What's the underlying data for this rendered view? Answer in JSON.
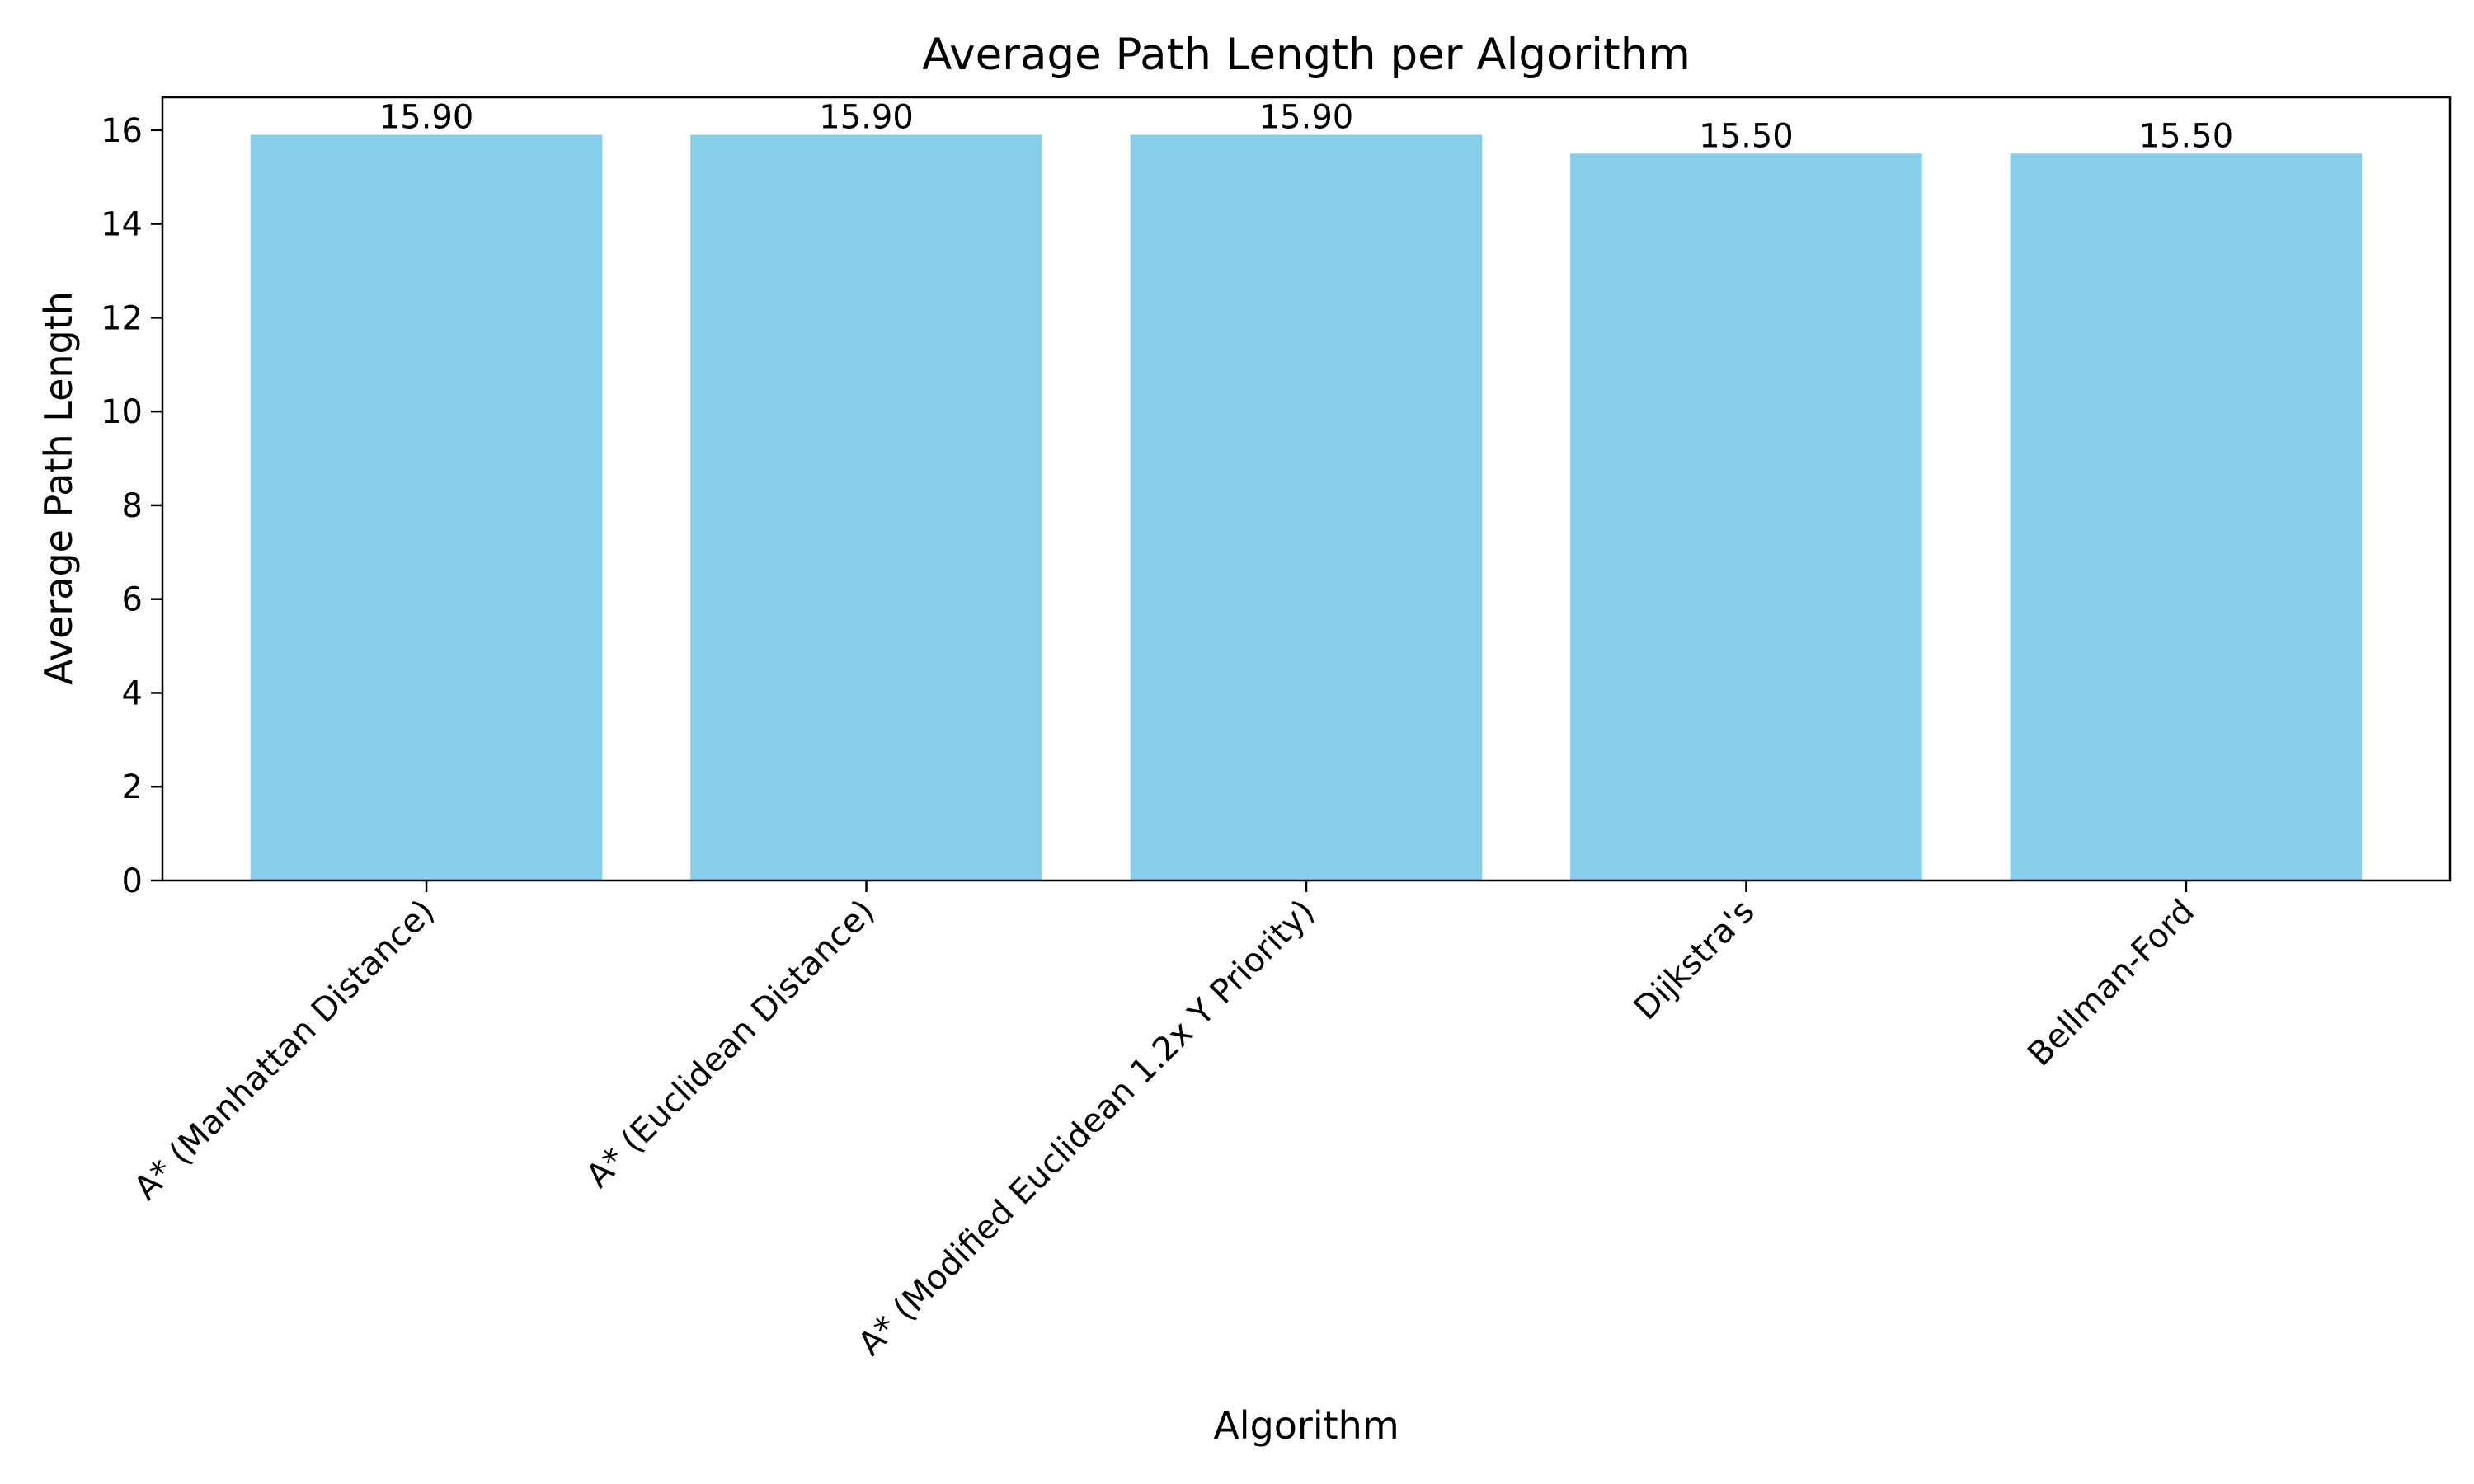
{
  "chart_data": {
    "type": "bar",
    "title": "Average Path Length per Algorithm",
    "xlabel": "Algorithm",
    "ylabel": "Average Path Length",
    "categories": [
      "A* (Manhattan Distance)",
      "A* (Euclidean Distance)",
      "A* (Modified Euclidean 1.2x Y Priority)",
      "Dijkstra's",
      "Bellman-Ford"
    ],
    "values": [
      15.9,
      15.9,
      15.9,
      15.5,
      15.5
    ],
    "data_labels": [
      "15.90",
      "15.90",
      "15.90",
      "15.50",
      "15.50"
    ],
    "ylim": [
      0,
      16.7
    ],
    "yticks": [
      0,
      2,
      4,
      6,
      8,
      10,
      12,
      14,
      16
    ],
    "grid": false,
    "legend": "none",
    "bar_color": "#87CEEB",
    "axis_color": "#000000"
  }
}
